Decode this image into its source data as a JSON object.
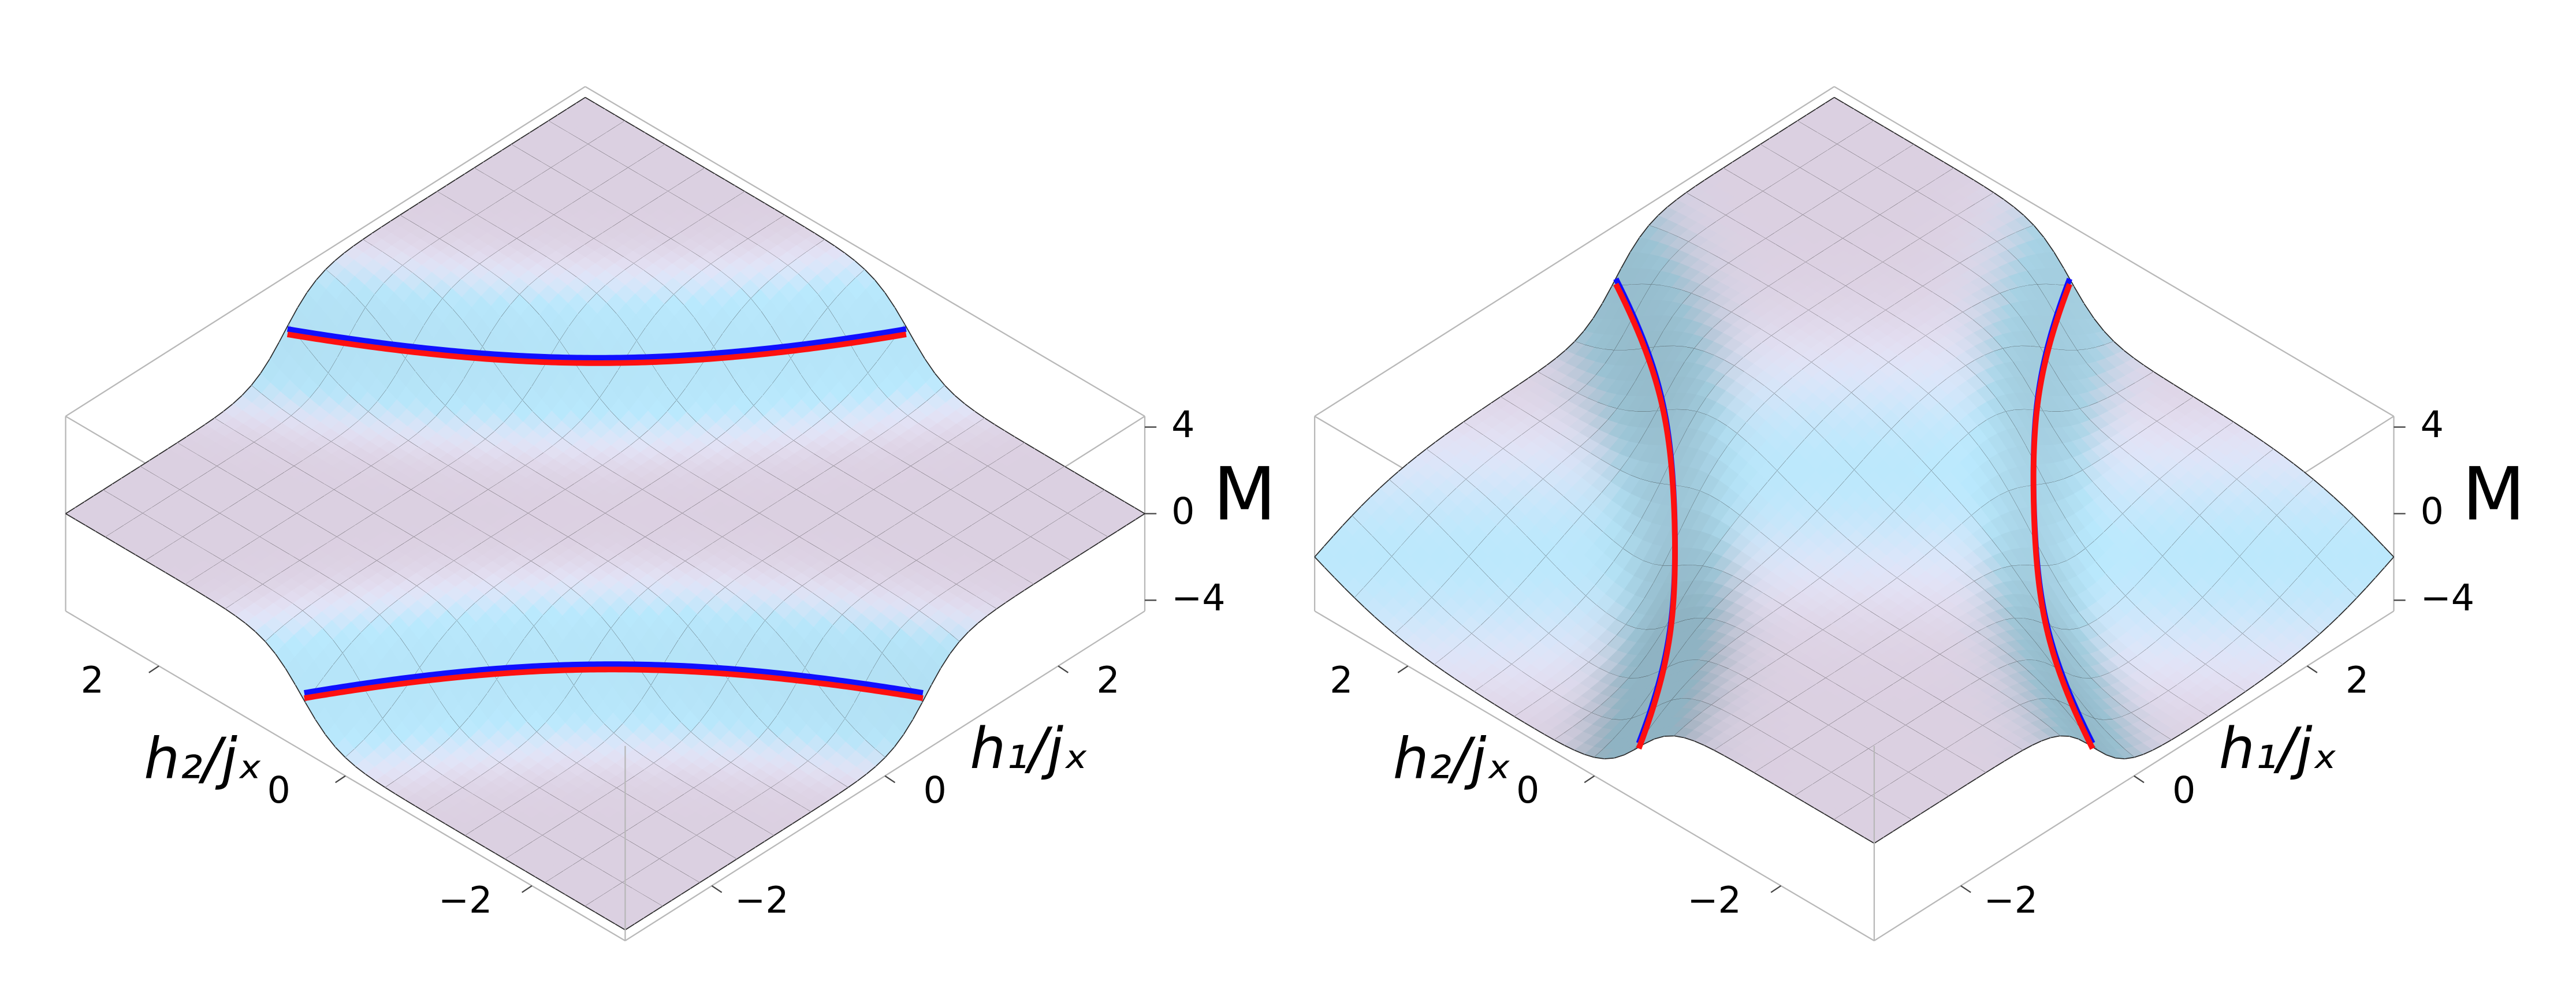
{
  "chart_data": [
    {
      "type": "surface",
      "xlabel": "h₁/jₓ",
      "ylabel": "h₂/jₓ",
      "zlabel": "M",
      "xlim": [
        -3,
        3
      ],
      "ylim": [
        -3,
        3
      ],
      "zlim": [
        -4.5,
        4.5
      ],
      "xticks": [
        {
          "value": -2,
          "label": "−2"
        },
        0,
        2
      ],
      "yticks": [
        {
          "value": -2,
          "label": "−2"
        },
        0,
        2
      ],
      "zticks": [
        {
          "value": -4,
          "label": "−4"
        },
        0,
        4
      ],
      "curve_colors": [
        "#1010ff",
        "#ff1010"
      ]
    },
    {
      "type": "surface",
      "xlabel": "h₁/jₓ",
      "ylabel": "h₂/jₓ",
      "zlabel": "M",
      "xlim": [
        -3,
        3
      ],
      "ylim": [
        -3,
        3
      ],
      "zlim": [
        -4.5,
        4.5
      ],
      "xticks": [
        {
          "value": -2,
          "label": "−2"
        },
        0,
        2
      ],
      "yticks": [
        {
          "value": -2,
          "label": "−2"
        },
        0,
        2
      ],
      "zticks": [
        {
          "value": -4,
          "label": "−4"
        },
        0,
        4
      ],
      "curve_colors": [
        "#1010ff",
        "#ff1010"
      ]
    }
  ]
}
